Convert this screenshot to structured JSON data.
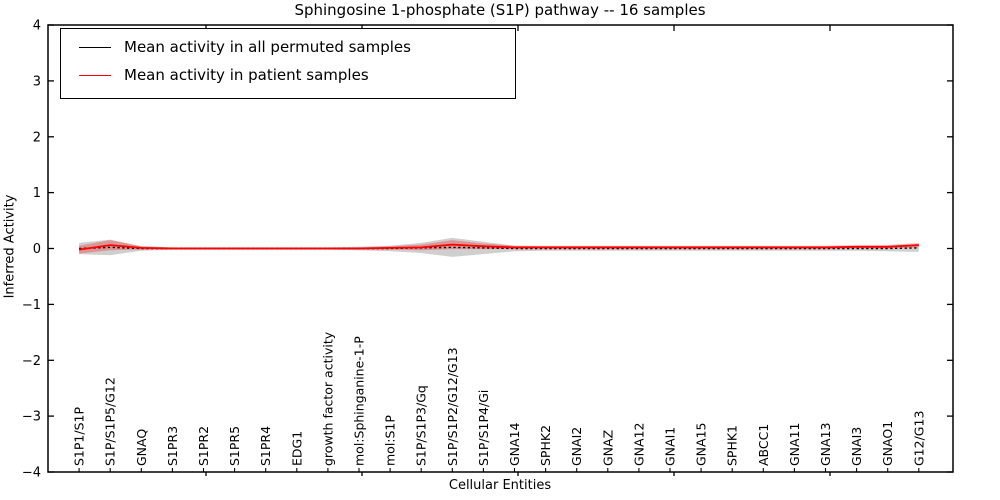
{
  "legend": {
    "items": [
      {
        "label": "Mean activity in all permuted samples",
        "color": "#000000"
      },
      {
        "label": "Mean activity in patient samples",
        "color": "#ff0000"
      }
    ],
    "position": "upper left"
  },
  "chart_data": {
    "type": "line",
    "title": "Sphingosine 1-phosphate (S1P) pathway -- 16 samples",
    "xlabel": "Cellular Entities",
    "ylabel": "Inferred Activity",
    "grid": false,
    "ylim": [
      -4,
      4
    ],
    "xlim": [
      -1,
      28.1
    ],
    "yticks": [
      4,
      3,
      2,
      1,
      0,
      -1,
      -2,
      -3,
      -4
    ],
    "categories": [
      "S1P1/S1P",
      "S1P/S1P5/G12",
      "GNAQ",
      "S1PR3",
      "S1PR2",
      "S1PR5",
      "S1PR4",
      "EDG1",
      "growth factor activity",
      "mol:Sphinganine-1-P",
      "mol:S1P",
      "S1P/S1P3/Gq",
      "S1P/S1P2/G12/G13",
      "S1P/S1P4/Gi",
      "GNA14",
      "SPHK2",
      "GNAI2",
      "GNAZ",
      "GNA12",
      "GNAI1",
      "GNA15",
      "SPHK1",
      "ABCC1",
      "GNA11",
      "GNA13",
      "GNAI3",
      "GNAO1",
      "G12/G13"
    ],
    "series": [
      {
        "name": "Mean activity in all permuted samples",
        "color": "#000000",
        "line_style": "dashed",
        "band_color": "rgba(128,128,128,0.38)",
        "values": [
          0.0,
          0.02,
          0.0,
          0.0,
          0.0,
          0.0,
          0.0,
          0.0,
          0.0,
          0.0,
          0.0,
          0.01,
          0.02,
          0.01,
          0.0,
          0.0,
          0.0,
          0.0,
          0.0,
          0.0,
          0.0,
          0.0,
          0.0,
          0.0,
          0.0,
          0.0,
          0.0,
          0.01
        ],
        "band": [
          0.1,
          0.14,
          0.04,
          0.02,
          0.02,
          0.02,
          0.02,
          0.02,
          0.02,
          0.03,
          0.05,
          0.09,
          0.17,
          0.11,
          0.05,
          0.04,
          0.04,
          0.04,
          0.04,
          0.04,
          0.04,
          0.04,
          0.04,
          0.04,
          0.04,
          0.04,
          0.05,
          0.07
        ]
      },
      {
        "name": "Mean activity in patient samples",
        "color": "#ff0000",
        "line_style": "solid",
        "band_color": "rgba(255,0,0,0.28)",
        "values": [
          -0.02,
          0.06,
          0.01,
          0.0,
          0.0,
          0.0,
          0.0,
          0.0,
          0.0,
          0.0,
          0.01,
          0.02,
          0.07,
          0.04,
          0.02,
          0.02,
          0.02,
          0.02,
          0.02,
          0.02,
          0.02,
          0.02,
          0.02,
          0.02,
          0.02,
          0.03,
          0.03,
          0.06
        ],
        "band": [
          0.07,
          0.09,
          0.03,
          0.02,
          0.02,
          0.02,
          0.02,
          0.02,
          0.02,
          0.02,
          0.03,
          0.05,
          0.08,
          0.05,
          0.03,
          0.03,
          0.03,
          0.03,
          0.03,
          0.03,
          0.03,
          0.03,
          0.03,
          0.03,
          0.03,
          0.03,
          0.03,
          0.04
        ]
      }
    ]
  }
}
